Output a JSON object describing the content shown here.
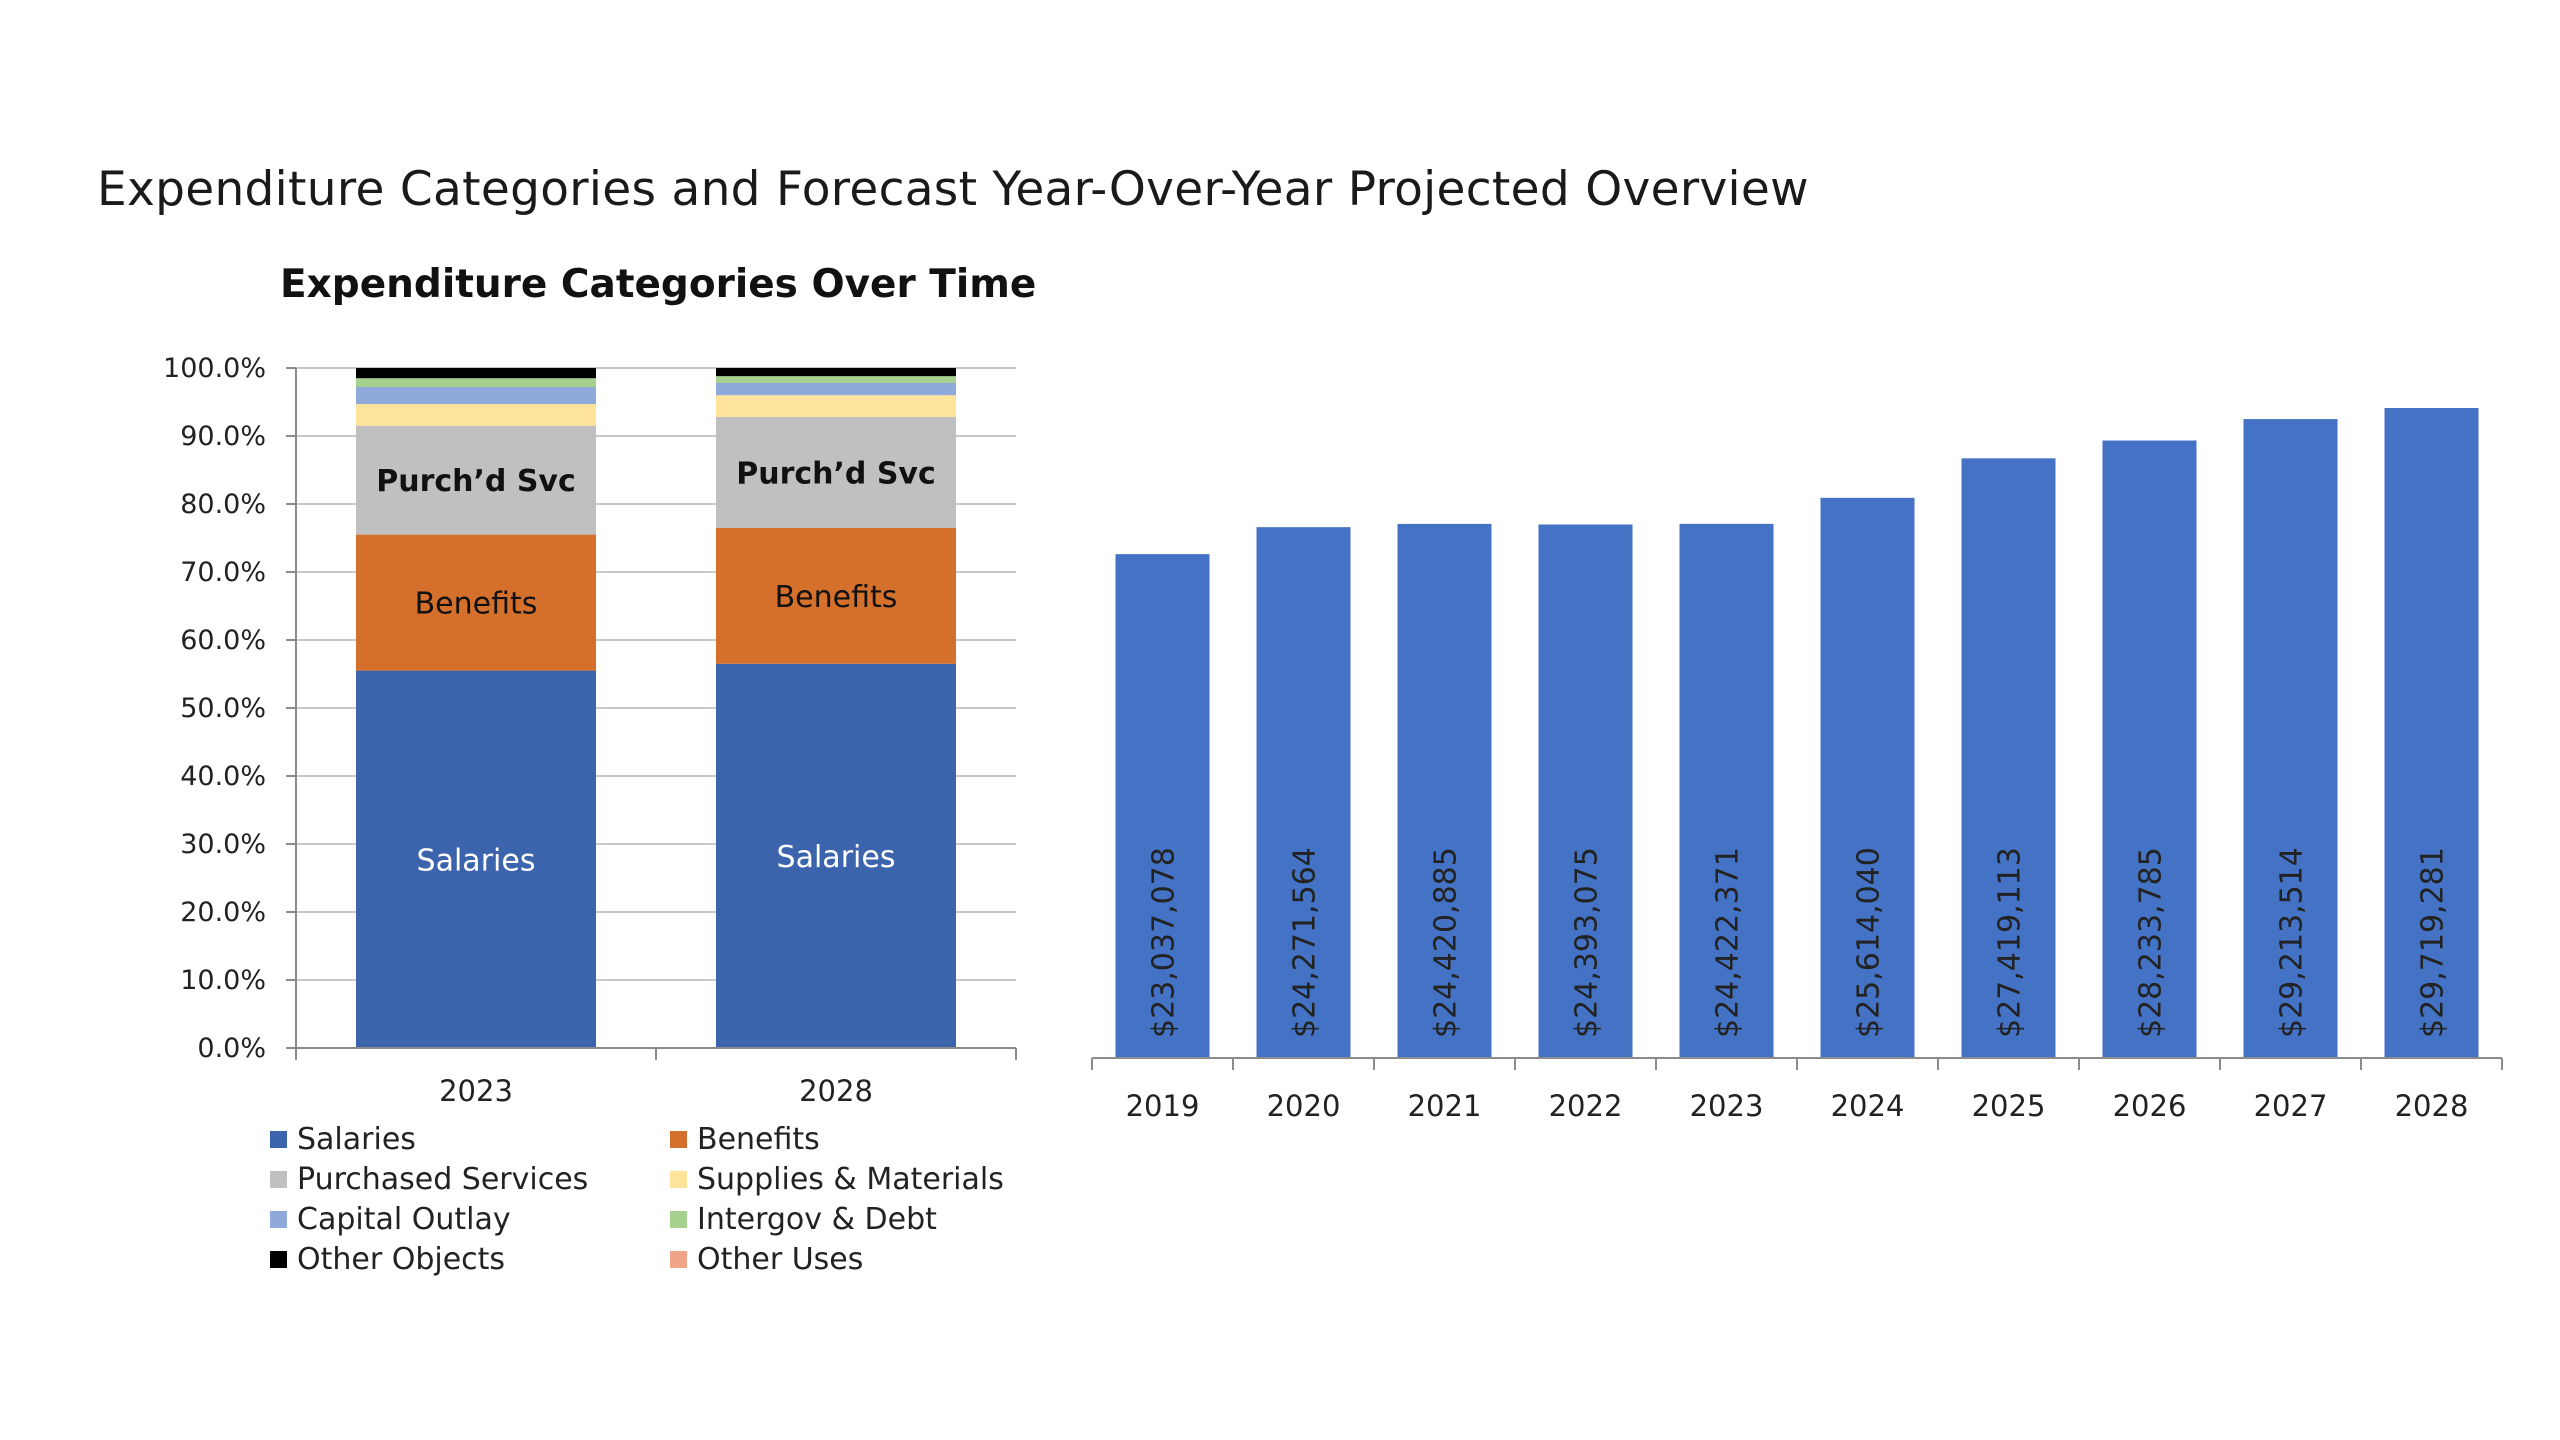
{
  "page": {
    "title": "Expenditure Categories and Forecast Year-Over-Year Projected Overview"
  },
  "chart_data": [
    {
      "type": "bar",
      "stacked": true,
      "title": "Expenditure Categories Over Time",
      "categories": [
        "2023",
        "2028"
      ],
      "ylim": [
        0,
        100
      ],
      "y_ticks": [
        "0.0%",
        "10.0%",
        "20.0%",
        "30.0%",
        "40.0%",
        "50.0%",
        "60.0%",
        "70.0%",
        "80.0%",
        "90.0%",
        "100.0%"
      ],
      "grid": true,
      "legend_position": "bottom",
      "series": [
        {
          "name": "Salaries",
          "color": "#3b64ad",
          "label": "Salaries",
          "label_color": "#ffffff",
          "values": [
            55.5,
            56.5
          ]
        },
        {
          "name": "Benefits",
          "color": "#d4702c",
          "label": "Benefits",
          "label_color": "#111111",
          "values": [
            20.0,
            20.0
          ]
        },
        {
          "name": "Purchased Services",
          "color": "#c0c0c0",
          "label": "Purch’d Svc",
          "label_color": "#111111",
          "label_bold": true,
          "values": [
            16.0,
            16.3
          ]
        },
        {
          "name": "Supplies & Materials",
          "color": "#fde49a",
          "label": "",
          "values": [
            3.2,
            3.2
          ]
        },
        {
          "name": "Capital Outlay",
          "color": "#8fa9db",
          "label": "",
          "values": [
            2.5,
            1.8
          ]
        },
        {
          "name": "Intergov & Debt",
          "color": "#a6d08e",
          "label": "",
          "values": [
            1.3,
            1.0
          ]
        },
        {
          "name": "Other Objects",
          "color": "#000000",
          "label": "",
          "values": [
            1.5,
            1.2
          ]
        },
        {
          "name": "Other Uses",
          "color": "#f2a488",
          "label": "",
          "values": [
            0.0,
            0.0
          ]
        }
      ],
      "legend": [
        {
          "name": "Salaries",
          "color": "#3b64ad"
        },
        {
          "name": "Benefits",
          "color": "#d4702c"
        },
        {
          "name": "Purchased Services",
          "color": "#c0c0c0"
        },
        {
          "name": "Supplies & Materials",
          "color": "#fde49a"
        },
        {
          "name": "Capital Outlay",
          "color": "#8fa9db"
        },
        {
          "name": "Intergov & Debt",
          "color": "#a6d08e"
        },
        {
          "name": "Other Objects",
          "color": "#000000"
        },
        {
          "name": "Other Uses",
          "color": "#f2a488"
        }
      ]
    },
    {
      "type": "bar",
      "title": "",
      "categories": [
        "2019",
        "2020",
        "2021",
        "2022",
        "2023",
        "2024",
        "2025",
        "2026",
        "2027",
        "2028"
      ],
      "values": [
        23037078,
        24271564,
        24420885,
        24393075,
        24422371,
        25614040,
        27419113,
        28233785,
        29213514,
        29719281
      ],
      "data_labels": [
        "$23,037,078",
        "$24,271,564",
        "$24,420,885",
        "$24,393,075",
        "$24,422,371",
        "$25,614,040",
        "$27,419,113",
        "$28,233,785",
        "$29,213,514",
        "$29,719,281"
      ],
      "ylim": [
        0,
        31000000
      ],
      "color": "#4472c4",
      "grid": false
    }
  ]
}
